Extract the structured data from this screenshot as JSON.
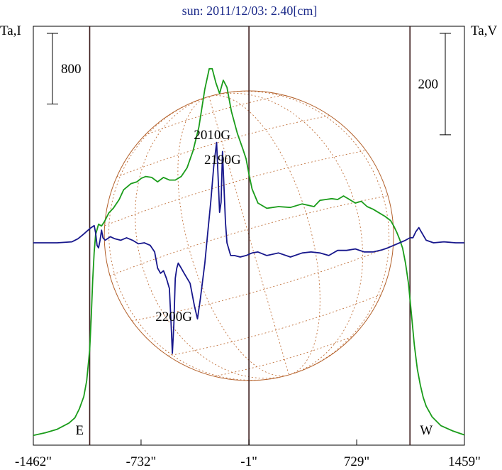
{
  "chart_data": {
    "type": "line",
    "title": "sun: 2011/12/03: 2.40[cm]",
    "left_axis_label": "Ta,I",
    "right_axis_label": "Ta,V",
    "xlabel": "",
    "x_ticks": [
      "-1462\"",
      "-732\"",
      "-1\"",
      "729\"",
      "1459\""
    ],
    "x_tick_values": [
      -1462,
      -732,
      -1,
      729,
      1459
    ],
    "xlim": [
      -1462,
      1459
    ],
    "limb_markers": [
      {
        "label": "E",
        "x": -1080
      },
      {
        "label": "W",
        "x": 1090
      }
    ],
    "center_marker_x": -1,
    "scale_bars": [
      {
        "side": "left",
        "label": "800",
        "value": 800
      },
      {
        "side": "right",
        "label": "200",
        "value": 200
      }
    ],
    "annotations": [
      {
        "text": "2010G",
        "x": -250
      },
      {
        "text": "2190G",
        "x": -180
      },
      {
        "text": "2200G",
        "x": -510
      }
    ],
    "series": [
      {
        "color": "#1a9c1a",
        "axis": "left",
        "x": [
          -1462,
          -1380,
          -1300,
          -1220,
          -1180,
          -1150,
          -1120,
          -1100,
          -1080,
          -1070,
          -1060,
          -1050,
          -1040,
          -1020,
          -1000,
          -980,
          -950,
          -920,
          -880,
          -850,
          -800,
          -760,
          -730,
          -700,
          -660,
          -620,
          -580,
          -540,
          -500,
          -460,
          -420,
          -380,
          -340,
          -300,
          -270,
          -250,
          -225,
          -200,
          -175,
          -150,
          -120,
          -80,
          -40,
          -20,
          0,
          20,
          60,
          120,
          200,
          280,
          360,
          440,
          480,
          520,
          560,
          600,
          640,
          680,
          720,
          760,
          800,
          840,
          880,
          920,
          960,
          980,
          1000,
          1020,
          1040,
          1060,
          1080,
          1100,
          1120,
          1140,
          1160,
          1180,
          1200,
          1240,
          1300,
          1380,
          1459
        ],
        "values": [
          30,
          60,
          100,
          170,
          230,
          330,
          470,
          650,
          1000,
          1350,
          1780,
          2100,
          2300,
          2420,
          2400,
          2450,
          2550,
          2600,
          2700,
          2810,
          2880,
          2900,
          2940,
          2960,
          2950,
          2900,
          2950,
          2920,
          2920,
          2960,
          3060,
          3250,
          3520,
          3950,
          4180,
          4180,
          4020,
          3900,
          4050,
          3970,
          3700,
          3450,
          3260,
          3160,
          2980,
          2820,
          2660,
          2600,
          2620,
          2610,
          2650,
          2620,
          2690,
          2700,
          2710,
          2700,
          2740,
          2700,
          2660,
          2680,
          2620,
          2590,
          2550,
          2510,
          2460,
          2400,
          2330,
          2250,
          2150,
          1980,
          1750,
          1400,
          1050,
          780,
          600,
          460,
          360,
          240,
          140,
          80,
          35
        ]
      },
      {
        "color": "#17178c",
        "axis": "right",
        "x": [
          -1462,
          -1300,
          -1200,
          -1160,
          -1130,
          -1110,
          -1090,
          -1070,
          -1050,
          -1040,
          -1030,
          -1020,
          -1010,
          -1000,
          -990,
          -975,
          -960,
          -940,
          -910,
          -870,
          -830,
          -790,
          -750,
          -710,
          -670,
          -640,
          -620,
          -600,
          -580,
          -560,
          -540,
          -530,
          -520,
          -510,
          -500,
          -490,
          -480,
          -470,
          -440,
          -400,
          -370,
          -350,
          -330,
          -300,
          -280,
          -260,
          -240,
          -220,
          -210,
          -200,
          -190,
          -180,
          -170,
          -160,
          -150,
          -140,
          -125,
          -100,
          -60,
          -20,
          20,
          60,
          120,
          200,
          280,
          360,
          420,
          480,
          540,
          600,
          660,
          720,
          780,
          840,
          900,
          940,
          980,
          1020,
          1060,
          1090,
          1110,
          1130,
          1150,
          1170,
          1200,
          1250,
          1320,
          1400,
          1459
        ],
        "values": [
          0,
          0,
          2,
          8,
          15,
          20,
          25,
          30,
          34,
          20,
          -5,
          -10,
          5,
          25,
          10,
          5,
          8,
          12,
          8,
          5,
          10,
          5,
          -2,
          0,
          -5,
          -18,
          -50,
          -60,
          -55,
          -70,
          -90,
          -150,
          -218,
          -160,
          -70,
          -50,
          -40,
          -45,
          -60,
          -80,
          -125,
          -150,
          -110,
          -40,
          20,
          80,
          150,
          198,
          130,
          60,
          80,
          180,
          110,
          40,
          0,
          -10,
          -25,
          -25,
          -28,
          -25,
          -20,
          -18,
          -25,
          -20,
          -28,
          -20,
          -18,
          -20,
          -25,
          -15,
          -15,
          -12,
          -18,
          -18,
          -14,
          -10,
          -5,
          0,
          5,
          10,
          10,
          22,
          30,
          20,
          5,
          0,
          2,
          0,
          0
        ]
      }
    ],
    "ylim_left": [
      0,
      4500
    ],
    "ylim_right": [
      -280,
      280
    ],
    "grid": false,
    "solar_disk": {
      "center_x": -1,
      "radius": 980
    }
  }
}
